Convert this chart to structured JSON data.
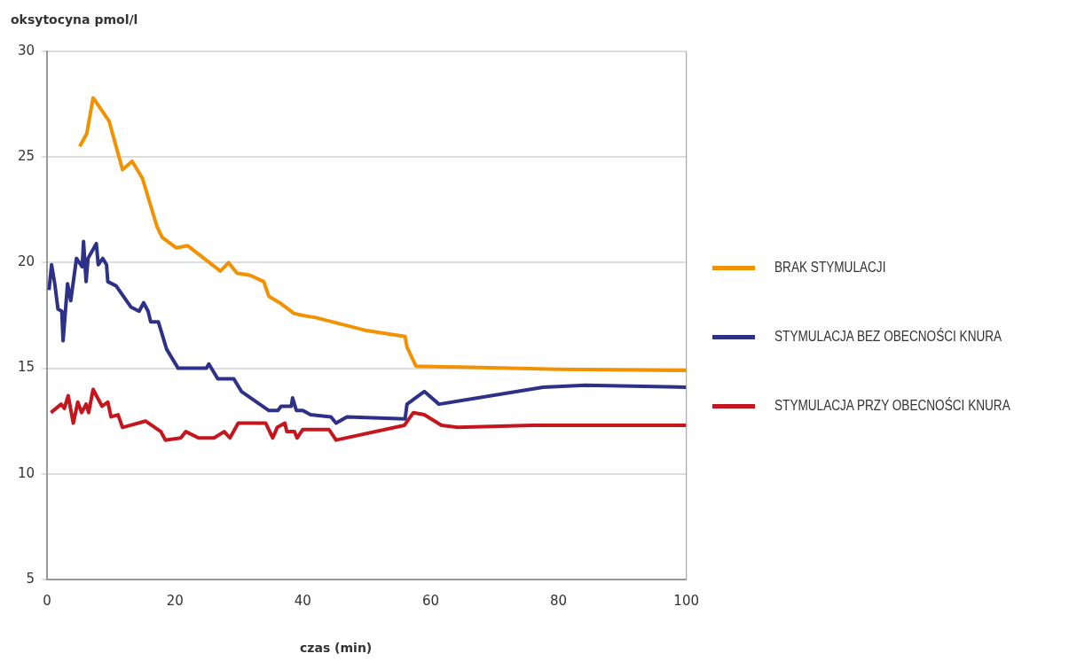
{
  "chart_data": {
    "type": "line",
    "ylabel": "oksytocyna pmol/l",
    "xlabel": "czas (min)",
    "xlim": [
      0,
      100
    ],
    "xticks": [
      0,
      20,
      40,
      60,
      80,
      100
    ],
    "ylim": [
      5,
      30
    ],
    "yticks": [
      5,
      10,
      15,
      20,
      25,
      30
    ],
    "grid": "y",
    "legend": "right",
    "marker": "none",
    "line_style": "solid",
    "series": [
      {
        "name": "BRAK STYMULACJI",
        "color": "#f39200",
        "x": [
          5.1,
          6.2,
          7.2,
          9.7,
          11.8,
          13.3,
          14.9,
          17.2,
          18,
          20.2,
          22,
          27.1,
          28.4,
          29.7,
          31.8,
          33.9,
          34.7,
          36.4,
          38.6,
          40,
          42,
          49.7,
          56,
          56.3,
          57.7,
          80,
          100
        ],
        "values": [
          25.5,
          26.1,
          27.8,
          26.7,
          24.4,
          24.8,
          24,
          21.7,
          21.2,
          20.7,
          20.8,
          19.6,
          20,
          19.5,
          19.4,
          19.1,
          18.4,
          18.1,
          17.6,
          17.5,
          17.4,
          16.8,
          16.5,
          16,
          15.1,
          14.95,
          14.9
        ]
      },
      {
        "name": "STYMULACJA BEZ OBECNOŚCI KNURA",
        "color": "#2e3188",
        "x": [
          0.3,
          0.7,
          1.2,
          1.7,
          2.3,
          2.5,
          3.2,
          3.7,
          4.6,
          5.5,
          5.7,
          6.1,
          6.4,
          7.7,
          8,
          8.7,
          9.3,
          9.5,
          10.8,
          13.1,
          14.4,
          15.1,
          15.8,
          16.2,
          17.4,
          18.7,
          20.5,
          24.9,
          25.3,
          26.7,
          29.2,
          30.4,
          34.7,
          36.1,
          36.6,
          38.2,
          38.4,
          39,
          40,
          41.2,
          44.4,
          45.2,
          46.9,
          56,
          56.3,
          59,
          61.3,
          77.6,
          84.2,
          100
        ],
        "values": [
          18.7,
          19.9,
          19,
          17.8,
          17.7,
          16.3,
          19,
          18.2,
          20.2,
          19.8,
          21,
          19.1,
          20.2,
          20.9,
          19.9,
          20.2,
          19.9,
          19.1,
          18.9,
          17.9,
          17.7,
          18.1,
          17.7,
          17.2,
          17.2,
          15.9,
          15,
          15,
          15.2,
          14.5,
          14.5,
          13.9,
          13,
          13,
          13.2,
          13.2,
          13.6,
          13,
          13,
          12.8,
          12.7,
          12.4,
          12.7,
          12.6,
          13.3,
          13.9,
          13.3,
          14.1,
          14.2,
          14.1
        ]
      },
      {
        "name": "STYMULACJA PRZY OBECNOŚCI KNURA",
        "color": "#c4161c",
        "x": [
          0.6,
          2.2,
          2.7,
          3.3,
          4.1,
          4.8,
          5.4,
          6.1,
          6.5,
          7.2,
          8.6,
          9.5,
          10,
          11.1,
          11.8,
          15.4,
          17.8,
          18.5,
          20.9,
          21.7,
          23.7,
          26.1,
          27.7,
          28.6,
          29.9,
          34.2,
          35.3,
          36,
          37.2,
          37.5,
          38.7,
          39.1,
          40,
          44.1,
          45.2,
          55.9,
          57.3,
          59,
          61.7,
          64.2,
          75.9,
          100
        ],
        "values": [
          12.9,
          13.3,
          13.1,
          13.7,
          12.4,
          13.4,
          12.9,
          13.3,
          12.9,
          14,
          13.2,
          13.4,
          12.7,
          12.8,
          12.2,
          12.5,
          12,
          11.6,
          11.7,
          12,
          11.7,
          11.7,
          12,
          11.7,
          12.4,
          12.4,
          11.7,
          12.2,
          12.4,
          12,
          12,
          11.7,
          12.1,
          12.1,
          11.6,
          12.3,
          12.9,
          12.8,
          12.3,
          12.2,
          12.3,
          12.3
        ]
      }
    ]
  }
}
